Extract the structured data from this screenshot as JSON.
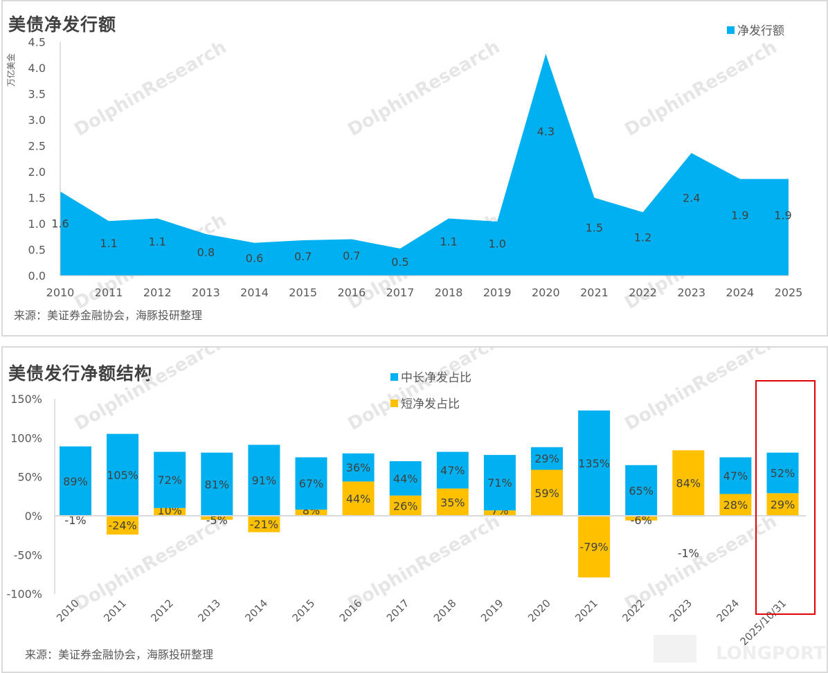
{
  "chart_data": [
    {
      "type": "area",
      "title": "美债净发行额",
      "ylabel": "万亿美金",
      "ylim": [
        0,
        4.5
      ],
      "yticks": [
        "0.0",
        "0.5",
        "1.0",
        "1.5",
        "2.0",
        "2.5",
        "3.0",
        "3.5",
        "4.0",
        "4.5"
      ],
      "categories": [
        "2010",
        "2011",
        "2012",
        "2013",
        "2014",
        "2015",
        "2016",
        "2017",
        "2018",
        "2019",
        "2020",
        "2021",
        "2022",
        "2023",
        "2024",
        "2025"
      ],
      "series": [
        {
          "name": "净发行额",
          "values": [
            1.62,
            1.05,
            1.1,
            0.8,
            0.63,
            0.68,
            0.7,
            0.52,
            1.1,
            1.04,
            4.27,
            1.5,
            1.22,
            2.36,
            1.86,
            1.86
          ],
          "labels": [
            "1.6",
            "1.1",
            "1.1",
            "0.8",
            "0.6",
            "0.7",
            "0.7",
            "0.5",
            "1.1",
            "1.0",
            "4.3",
            "1.5",
            "1.2",
            "2.4",
            "1.9",
            "1.9"
          ],
          "color": "#00b0f0"
        }
      ],
      "legend": "top-right",
      "grid": false,
      "source": "来源：美证券金融协会，海豚投研整理"
    },
    {
      "type": "bar",
      "stacked": true,
      "title": "美债发行净额结构",
      "ylim": [
        -100,
        150
      ],
      "yticks": [
        "-100%",
        "-50%",
        "0%",
        "50%",
        "100%",
        "150%"
      ],
      "categories": [
        "2010",
        "2011",
        "2012",
        "2013",
        "2014",
        "2015",
        "2016",
        "2017",
        "2018",
        "2019",
        "2020",
        "2021",
        "2022",
        "2023",
        "2024",
        "2025/10/31"
      ],
      "series": [
        {
          "name": "中长净发占比",
          "color": "#00b0f0",
          "values": [
            89,
            105,
            72,
            81,
            91,
            67,
            36,
            44,
            47,
            71,
            29,
            135,
            65,
            -1,
            47,
            52
          ]
        },
        {
          "name": "短净发占比",
          "color": "#ffc000",
          "values": [
            -1,
            -24,
            10,
            -5,
            -21,
            8,
            44,
            26,
            35,
            7,
            59,
            -79,
            -6,
            84,
            28,
            29
          ]
        }
      ],
      "legend": "top",
      "grid": false,
      "highlight": "2025/10/31",
      "highlight_color": "#e00000",
      "source": "来源：美证券金融协会，海豚投研整理"
    }
  ],
  "watermark": "DolphinResearch",
  "logo": "LONGPORT"
}
